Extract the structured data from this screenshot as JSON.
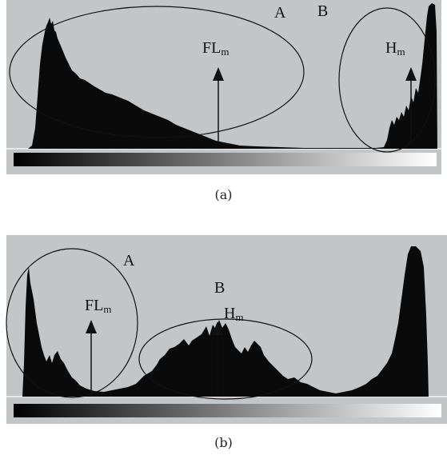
{
  "panels": [
    {
      "id": "a",
      "caption": "(a)",
      "labels": {
        "region_a": "A",
        "region_b": "B",
        "fl_main": "FL",
        "fl_sub": "m",
        "h_main": "H",
        "h_sub": "m"
      }
    },
    {
      "id": "b",
      "caption": "(b)",
      "labels": {
        "region_a": "A",
        "region_b": "B",
        "fl_main": "FL",
        "fl_sub": "m",
        "h_main": "H",
        "h_sub": "m"
      }
    }
  ],
  "colors": {
    "panel_bg": "#c3c6c8",
    "histogram": "#0a0a0a",
    "ink": "#111111"
  }
}
